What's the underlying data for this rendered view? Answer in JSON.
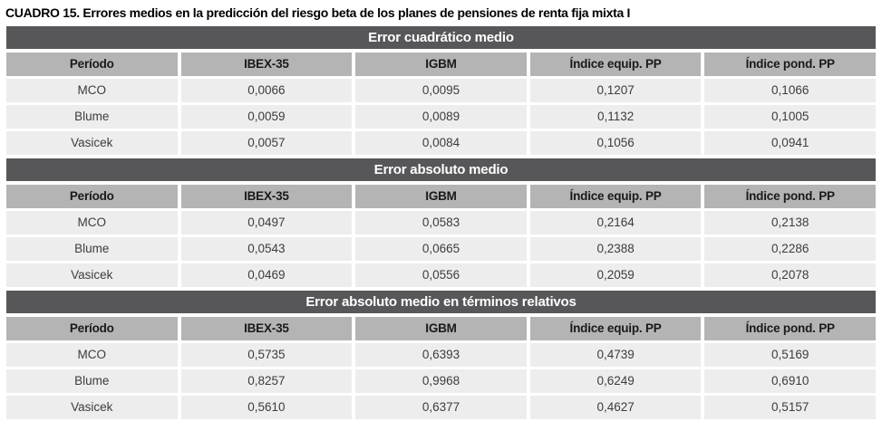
{
  "caption": "CUADRO 15. Errores medios en la predicción del riesgo beta de los planes de pensiones de renta fija mixta I",
  "columns": [
    "Período",
    "IBEX-35",
    "IGBM",
    "Índice equip. PP",
    "Índice pond. PP"
  ],
  "colors": {
    "section_band_bg": "#57575a",
    "section_band_text": "#ffffff",
    "column_header_bg": "#b4b4b4",
    "row_bg": "#ededed",
    "text": "#3c3c3c"
  },
  "sections": [
    {
      "header": "Error cuadrático medio",
      "rows": [
        {
          "label": "MCO",
          "values": [
            "0,0066",
            "0,0095",
            "0,1207",
            "0,1066"
          ]
        },
        {
          "label": "Blume",
          "values": [
            "0,0059",
            "0,0089",
            "0,1132",
            "0,1005"
          ]
        },
        {
          "label": "Vasicek",
          "values": [
            "0,0057",
            "0,0084",
            "0,1056",
            "0,0941"
          ]
        }
      ]
    },
    {
      "header": "Error absoluto medio",
      "rows": [
        {
          "label": "MCO",
          "values": [
            "0,0497",
            "0,0583",
            "0,2164",
            "0,2138"
          ]
        },
        {
          "label": "Blume",
          "values": [
            "0,0543",
            "0,0665",
            "0,2388",
            "0,2286"
          ]
        },
        {
          "label": "Vasicek",
          "values": [
            "0,0469",
            "0,0556",
            "0,2059",
            "0,2078"
          ]
        }
      ]
    },
    {
      "header": "Error absoluto medio en términos relativos",
      "rows": [
        {
          "label": "MCO",
          "values": [
            "0,5735",
            "0,6393",
            "0,4739",
            "0,5169"
          ]
        },
        {
          "label": "Blume",
          "values": [
            "0,8257",
            "0,9968",
            "0,6249",
            "0,6910"
          ]
        },
        {
          "label": "Vasicek",
          "values": [
            "0,5610",
            "0,6377",
            "0,4627",
            "0,5157"
          ]
        }
      ]
    }
  ]
}
